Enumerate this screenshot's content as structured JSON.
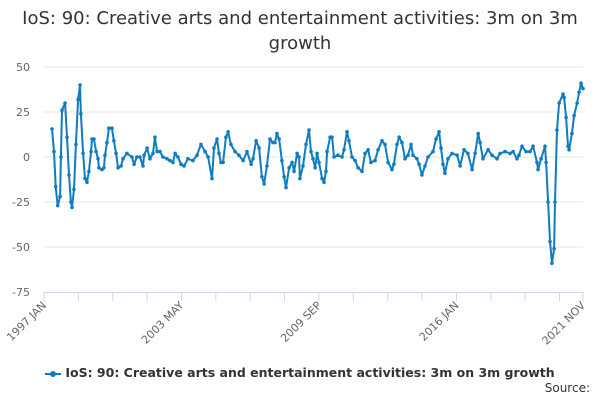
{
  "chart_data": {
    "type": "line",
    "title": "IoS: 90: Creative arts and entertainment activities: 3m on 3m growth",
    "xlabel": "",
    "ylabel": "",
    "x_unit": "year (decimal)",
    "xlim": [
      1997.0,
      2021.83
    ],
    "ylim": [
      -75,
      50
    ],
    "yticks": [
      50,
      25,
      0,
      -25,
      -50,
      -75
    ],
    "xtick_labels": [
      "1997 JAN",
      "2003 MAY",
      "2009 SEP",
      "2016 JAN",
      "2021 NOV"
    ],
    "xtick_label_positions": [
      1997.0,
      2003.33,
      2009.67,
      2016.0,
      2021.83
    ],
    "grid": "horizontal",
    "legend_position": "bottom",
    "color": "#0f7cc0",
    "series": [
      {
        "name": "IoS: 90: Creative arts and entertainment activities: 3m on 3m growth",
        "points": [
          [
            1997.37,
            15.6
          ],
          [
            1997.46,
            3
          ],
          [
            1997.54,
            -16.5
          ],
          [
            1997.63,
            -27
          ],
          [
            1997.74,
            -22
          ],
          [
            1997.78,
            0
          ],
          [
            1997.83,
            26
          ],
          [
            1997.97,
            30
          ],
          [
            1998.06,
            11
          ],
          [
            1998.15,
            -10
          ],
          [
            1998.24,
            -25
          ],
          [
            1998.29,
            -28
          ],
          [
            1998.38,
            -18
          ],
          [
            1998.47,
            7
          ],
          [
            1998.57,
            32
          ],
          [
            1998.66,
            40
          ],
          [
            1998.7,
            24
          ],
          [
            1998.8,
            2
          ],
          [
            1998.89,
            -12
          ],
          [
            1998.98,
            -14
          ],
          [
            1999.07,
            -8
          ],
          [
            1999.17,
            3
          ],
          [
            1999.21,
            10
          ],
          [
            1999.3,
            10
          ],
          [
            1999.4,
            3
          ],
          [
            1999.49,
            -1
          ],
          [
            1999.53,
            -6
          ],
          [
            1999.67,
            -7
          ],
          [
            1999.76,
            -6
          ],
          [
            1999.81,
            1
          ],
          [
            1999.9,
            8
          ],
          [
            1999.99,
            16
          ],
          [
            2000.13,
            16
          ],
          [
            2000.22,
            9
          ],
          [
            2000.32,
            2
          ],
          [
            2000.41,
            -6
          ],
          [
            2000.55,
            -5
          ],
          [
            2000.64,
            -1
          ],
          [
            2000.82,
            2
          ],
          [
            2001.05,
            0
          ],
          [
            2001.15,
            -4
          ],
          [
            2001.28,
            0
          ],
          [
            2001.42,
            0
          ],
          [
            2001.56,
            -5
          ],
          [
            2001.61,
            1
          ],
          [
            2001.75,
            5
          ],
          [
            2001.88,
            -1
          ],
          [
            2002.02,
            2
          ],
          [
            2002.11,
            11
          ],
          [
            2002.21,
            3
          ],
          [
            2002.34,
            3
          ],
          [
            2002.48,
            0
          ],
          [
            2002.67,
            -1
          ],
          [
            2002.8,
            -2
          ],
          [
            2002.94,
            -3
          ],
          [
            2003.04,
            2
          ],
          [
            2003.17,
            0
          ],
          [
            2003.31,
            -4
          ],
          [
            2003.45,
            -5
          ],
          [
            2003.63,
            -1
          ],
          [
            2003.86,
            -2
          ],
          [
            2004.05,
            1
          ],
          [
            2004.23,
            7
          ],
          [
            2004.42,
            3
          ],
          [
            2004.56,
            0
          ],
          [
            2004.74,
            -12
          ],
          [
            2004.83,
            5
          ],
          [
            2004.97,
            10
          ],
          [
            2005.06,
            2
          ],
          [
            2005.15,
            -3
          ],
          [
            2005.25,
            -3
          ],
          [
            2005.38,
            11
          ],
          [
            2005.48,
            14
          ],
          [
            2005.61,
            7
          ],
          [
            2005.8,
            3
          ],
          [
            2005.98,
            1
          ],
          [
            2006.17,
            -2
          ],
          [
            2006.35,
            3
          ],
          [
            2006.54,
            -4
          ],
          [
            2006.63,
            -1
          ],
          [
            2006.77,
            9
          ],
          [
            2006.91,
            5
          ],
          [
            2007.04,
            -11
          ],
          [
            2007.14,
            -15
          ],
          [
            2007.27,
            -5
          ],
          [
            2007.41,
            10
          ],
          [
            2007.55,
            8
          ],
          [
            2007.64,
            8
          ],
          [
            2007.73,
            13
          ],
          [
            2007.83,
            10
          ],
          [
            2007.96,
            -2
          ],
          [
            2008.06,
            -11
          ],
          [
            2008.15,
            -17
          ],
          [
            2008.29,
            -6
          ],
          [
            2008.43,
            -3
          ],
          [
            2008.52,
            -8
          ],
          [
            2008.66,
            2
          ],
          [
            2008.75,
            0
          ],
          [
            2008.79,
            -12
          ],
          [
            2008.93,
            -5
          ],
          [
            2009.07,
            7
          ],
          [
            2009.21,
            15
          ],
          [
            2009.3,
            3
          ],
          [
            2009.39,
            -1
          ],
          [
            2009.49,
            -6
          ],
          [
            2009.58,
            2
          ],
          [
            2009.67,
            -3
          ],
          [
            2009.81,
            -12
          ],
          [
            2009.9,
            -14
          ],
          [
            2009.99,
            -8
          ],
          [
            2010.04,
            3
          ],
          [
            2010.18,
            11
          ],
          [
            2010.27,
            11
          ],
          [
            2010.36,
            0
          ],
          [
            2010.54,
            1
          ],
          [
            2010.73,
            0
          ],
          [
            2010.82,
            4
          ],
          [
            2010.96,
            14
          ],
          [
            2011.05,
            9
          ],
          [
            2011.19,
            0
          ],
          [
            2011.33,
            -2
          ],
          [
            2011.47,
            -6
          ],
          [
            2011.65,
            -8
          ],
          [
            2011.79,
            2
          ],
          [
            2011.93,
            4
          ],
          [
            2012.06,
            -3
          ],
          [
            2012.25,
            -2
          ],
          [
            2012.39,
            4
          ],
          [
            2012.57,
            9
          ],
          [
            2012.71,
            7
          ],
          [
            2012.85,
            -3
          ],
          [
            2013.03,
            -7
          ],
          [
            2013.12,
            -4
          ],
          [
            2013.26,
            7
          ],
          [
            2013.36,
            11
          ],
          [
            2013.49,
            8
          ],
          [
            2013.63,
            -1
          ],
          [
            2013.77,
            1
          ],
          [
            2013.91,
            7
          ],
          [
            2014.0,
            1
          ],
          [
            2014.18,
            -1
          ],
          [
            2014.28,
            -4
          ],
          [
            2014.41,
            -10
          ],
          [
            2014.55,
            -5
          ],
          [
            2014.69,
            0
          ],
          [
            2014.92,
            3
          ],
          [
            2015.06,
            10
          ],
          [
            2015.2,
            14
          ],
          [
            2015.29,
            5
          ],
          [
            2015.38,
            -4
          ],
          [
            2015.47,
            -9
          ],
          [
            2015.61,
            -1
          ],
          [
            2015.8,
            2
          ],
          [
            2016.03,
            1
          ],
          [
            2016.17,
            -5
          ],
          [
            2016.35,
            4
          ],
          [
            2016.53,
            2
          ],
          [
            2016.72,
            -7
          ],
          [
            2016.86,
            2
          ],
          [
            2017.0,
            13
          ],
          [
            2017.09,
            8
          ],
          [
            2017.22,
            -1
          ],
          [
            2017.46,
            4
          ],
          [
            2017.64,
            1
          ],
          [
            2017.87,
            -1
          ],
          [
            2018.01,
            2
          ],
          [
            2018.24,
            3
          ],
          [
            2018.47,
            2
          ],
          [
            2018.61,
            3
          ],
          [
            2018.79,
            -1
          ],
          [
            2018.88,
            1
          ],
          [
            2019.02,
            6
          ],
          [
            2019.21,
            3
          ],
          [
            2019.39,
            3
          ],
          [
            2019.53,
            6
          ],
          [
            2019.71,
            -3
          ],
          [
            2019.76,
            -7
          ],
          [
            2019.9,
            -1
          ],
          [
            2020.08,
            6
          ],
          [
            2020.13,
            -3
          ],
          [
            2020.22,
            -25
          ],
          [
            2020.31,
            -47
          ],
          [
            2020.4,
            -59
          ],
          [
            2020.5,
            -51
          ],
          [
            2020.54,
            -25
          ],
          [
            2020.63,
            15
          ],
          [
            2020.73,
            30
          ],
          [
            2020.91,
            35
          ],
          [
            2020.96,
            33
          ],
          [
            2021.05,
            22
          ],
          [
            2021.14,
            6
          ],
          [
            2021.19,
            4
          ],
          [
            2021.32,
            13
          ],
          [
            2021.42,
            23
          ],
          [
            2021.56,
            30
          ],
          [
            2021.65,
            36
          ],
          [
            2021.74,
            41
          ],
          [
            2021.83,
            38
          ]
        ]
      }
    ]
  },
  "legend": {
    "label": "IoS: 90: Creative arts and entertainment activities: 3m on 3m growth"
  },
  "source": {
    "label": "Source:"
  }
}
